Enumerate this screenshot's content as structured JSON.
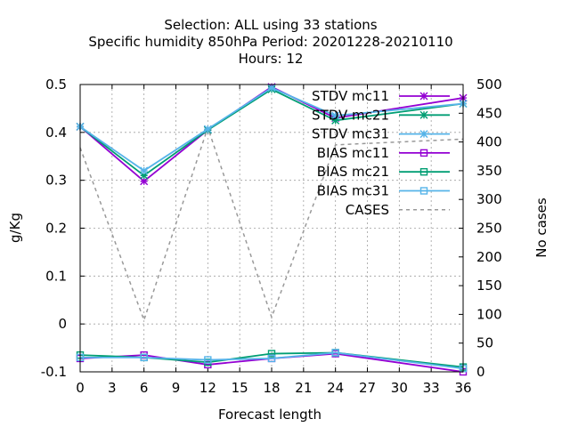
{
  "chart_data": {
    "type": "line",
    "title_lines": [
      "Selection: ALL using    33 stations",
      "Specific humidity 850hPa   Period: 20201228-20210110",
      "Hours:  12"
    ],
    "xlabel": "Forecast length",
    "ylabel": "g/Kg",
    "y2label": "No cases",
    "xlim": [
      0,
      36
    ],
    "ylim": [
      -0.1,
      0.5
    ],
    "y2lim": [
      0,
      500
    ],
    "x_ticks": [
      "0",
      "3",
      "6",
      "9",
      "12",
      "15",
      "18",
      "21",
      "24",
      "27",
      "30",
      "33",
      "36"
    ],
    "y_ticks": [
      "-0.1",
      "0",
      "0.1",
      "0.2",
      "0.3",
      "0.4",
      "0.5"
    ],
    "y2_ticks": [
      "0",
      "50",
      "100",
      "150",
      "200",
      "250",
      "300",
      "350",
      "400",
      "450",
      "500"
    ],
    "grid": true,
    "legend_position": "top-right",
    "x": [
      0,
      6,
      12,
      18,
      24,
      36
    ],
    "series": [
      {
        "name": "STDV mc11",
        "axis": "y",
        "marker": "star",
        "dash": "solid",
        "color": "#9400d3",
        "values": [
          0.412,
          0.298,
          0.405,
          0.495,
          0.43,
          0.472
        ]
      },
      {
        "name": "STDV mc21",
        "axis": "y",
        "marker": "star",
        "dash": "solid",
        "color": "#009e73",
        "values": [
          0.412,
          0.31,
          0.405,
          0.49,
          0.425,
          0.46
        ]
      },
      {
        "name": "STDV mc31",
        "axis": "y",
        "marker": "star",
        "dash": "solid",
        "color": "#56b4e9",
        "values": [
          0.412,
          0.32,
          0.407,
          0.493,
          0.435,
          0.46
        ]
      },
      {
        "name": "BIAS mc11",
        "axis": "y",
        "marker": "square",
        "dash": "solid",
        "color": "#9400d3",
        "values": [
          -0.072,
          -0.065,
          -0.085,
          -0.072,
          -0.062,
          -0.1
        ]
      },
      {
        "name": "BIAS mc21",
        "axis": "y",
        "marker": "square",
        "dash": "solid",
        "color": "#009e73",
        "values": [
          -0.065,
          -0.07,
          -0.08,
          -0.062,
          -0.06,
          -0.09
        ]
      },
      {
        "name": "BIAS mc31",
        "axis": "y",
        "marker": "square",
        "dash": "solid",
        "color": "#56b4e9",
        "values": [
          -0.07,
          -0.07,
          -0.075,
          -0.072,
          -0.06,
          -0.093
        ]
      },
      {
        "name": "CASES",
        "axis": "y2",
        "marker": "none",
        "dash": "dashed",
        "color": "#999999",
        "values": [
          390,
          90,
          425,
          95,
          395,
          405
        ]
      }
    ]
  }
}
